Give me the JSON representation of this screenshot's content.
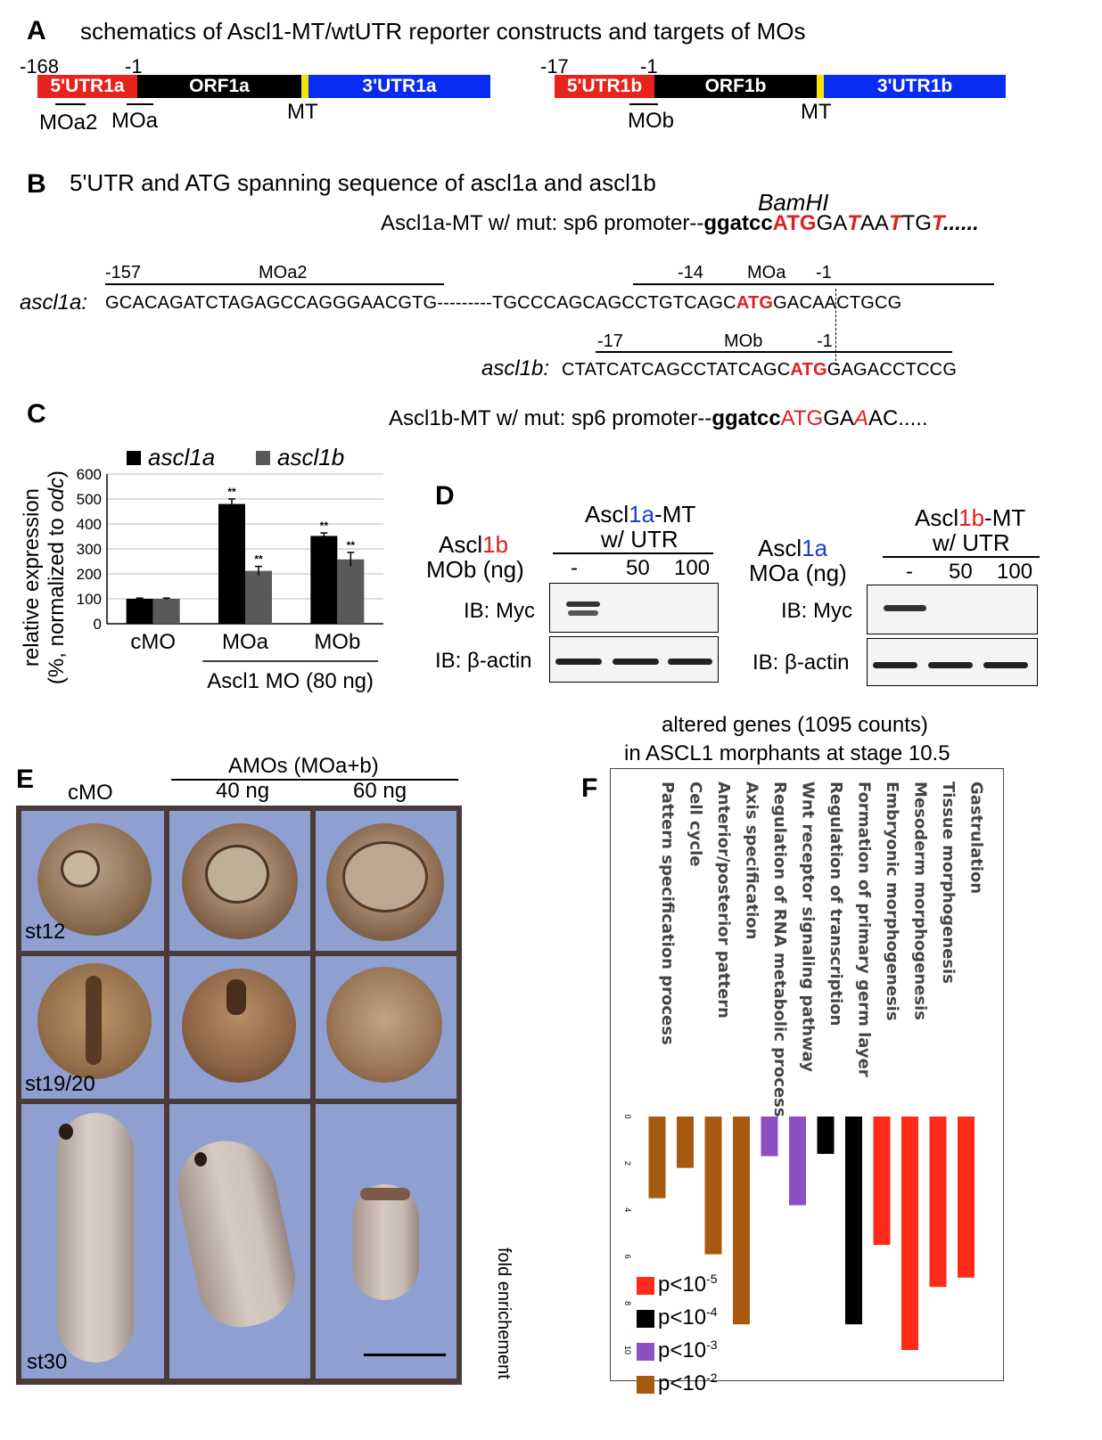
{
  "panelA": {
    "label": "A",
    "title": "schematics of Ascl1-MT/wtUTR reporter constructs and targets of MOs",
    "left": {
      "start": "-168",
      "atg": "-1",
      "utr5": "5'UTR1a",
      "orf": "ORF1a",
      "utr3": "3'UTR1a",
      "mt": "MT",
      "mo1": "MOa2",
      "mo2": "MOa"
    },
    "right": {
      "start": "-17",
      "atg": "-1",
      "utr5": "5'UTR1b",
      "orf": "ORF1b",
      "utr3": "3'UTR1b",
      "mt": "MT",
      "mo1": "MOb"
    },
    "colors": {
      "utr5": "#e8221d",
      "orf": "#000000",
      "mt": "#f2e600",
      "utr3": "#0a2bf2"
    }
  },
  "panelB": {
    "label": "B",
    "title": "5'UTR and ATG spanning sequence of ascl1a and ascl1b",
    "bamhi": "BamHI",
    "mut_a_prefix": "Ascl1a-MT w/ mut: sp6 promoter--",
    "mut_a_site": "ggatcc",
    "mut_a_atg": "ATG",
    "mut_a_seq": [
      "GA",
      "T",
      "AA",
      "T",
      "TG",
      "T",
      "......"
    ],
    "mo_a2": "MOa2",
    "pos_157": "-157",
    "pos_14": "-14",
    "mo_a": "MOa",
    "pos_a1": "-1",
    "ascl1a_name": "ascl1a:",
    "ascl1a_5": "GCACAGATCTAGAGCCAGGGAACGTG---------TGCCCAGCAGCCTGTCAGC",
    "ascl1a_atg": "ATG",
    "ascl1a_3": "GACAACTGCG",
    "pos_17": "-17",
    "mo_b": "MOb",
    "pos_b1": "-1",
    "ascl1b_name": "ascl1b:",
    "ascl1b_5": "CTATCATCAGCCTATCAGC",
    "ascl1b_atg": "ATG",
    "ascl1b_3": "GAGACCTCCG",
    "mut_b_prefix": "Ascl1b-MT w/ mut: sp6 promoter--",
    "mut_b_site": "ggatcc",
    "mut_b_atg": "ATG",
    "mut_b_seq": [
      "GA",
      "A",
      "AC....."
    ]
  },
  "panelC": {
    "label": "C",
    "chart_data": {
      "type": "bar",
      "categories": [
        "cMO",
        "MOa",
        "MOb"
      ],
      "series": [
        {
          "name": "ascl1a",
          "values": [
            100,
            480,
            352
          ],
          "errors": [
            3,
            20,
            12
          ],
          "color": "#000000"
        },
        {
          "name": "ascl1b",
          "values": [
            100,
            212,
            258
          ],
          "errors": [
            3,
            18,
            28
          ],
          "color": "#595959"
        }
      ],
      "significance": [
        [
          "",
          ""
        ],
        [
          "**",
          "**"
        ],
        [
          "**",
          "**"
        ]
      ],
      "ylim": [
        0,
        600
      ],
      "yticks": [
        "0",
        "100",
        "200",
        "300",
        "400",
        "500",
        "600"
      ],
      "ylabel_line1": "relative expression",
      "ylabel_line2": "(%, normalized to ",
      "ylabel_italic": "odc",
      "ylabel_end": ")",
      "group_label": "Ascl1 MO (80 ng)",
      "grid": true
    }
  },
  "panelD": {
    "label": "D",
    "left": {
      "target_pre": "Ascl",
      "target_num": "1b",
      "construct_pre": "Ascl",
      "construct_num": "1a",
      "construct_post": "-MT",
      "construct_line2": "w/ UTR",
      "mo_label": "MOb (ng)",
      "doses": [
        "-",
        "50",
        "100"
      ]
    },
    "right": {
      "target_pre": "Ascl",
      "target_num": "1a",
      "construct_pre": "Ascl",
      "construct_num": "1b",
      "construct_post": "-MT",
      "construct_line2": "w/ UTR",
      "mo_label": "MOa (ng)",
      "doses": [
        "-",
        "50",
        "100"
      ]
    },
    "ib_myc": "IB: Myc",
    "ib_actin": "IB: β-actin"
  },
  "panelE": {
    "label": "E",
    "col_cmo": "cMO",
    "amo_header": "AMOs (MOa+b)",
    "dose1": "40 ng",
    "dose2": "60 ng",
    "stages": [
      "st12",
      "st19/20",
      "st30"
    ]
  },
  "panelF": {
    "label": "F",
    "title_line1": "altered genes (1095 counts)",
    "title_line2": "in ASCL1 morphants at stage 10.5",
    "chart_data": {
      "type": "bar",
      "orientation": "vertical-down",
      "categories": [
        "Pattern specification process",
        "Cell cycle",
        "Anterior/posterior pattern",
        "Axis specification",
        "Regulation of RNA metabolic process",
        "Wnt receptor signaling pathway",
        "Regulation of transcription",
        "Formation of primary germ layer",
        "Embryonic morphogenesis",
        "Mesoderm morphogenesis",
        "Tissue morphogenesis",
        "Gastrulation"
      ],
      "values": [
        3.5,
        2.2,
        5.9,
        8.9,
        1.7,
        3.8,
        1.6,
        8.9,
        5.5,
        10.0,
        7.3,
        6.9
      ],
      "pclass": [
        "p<10-2",
        "p<10-2",
        "p<10-2",
        "p<10-2",
        "p<10-3",
        "p<10-3",
        "p<10-4",
        "p<10-4",
        "p<10-5",
        "p<10-5",
        "p<10-5",
        "p<10-5"
      ],
      "colors": {
        "p<10-5": "#ff2a1a",
        "p<10-4": "#000000",
        "p<10-3": "#8e4fc4",
        "p<10-2": "#a65a10"
      },
      "ylim": [
        0,
        10
      ],
      "yticks": [
        "0",
        "2",
        "4",
        "6",
        "8",
        "10"
      ],
      "ylabel": "fold enrichement",
      "legend": [
        {
          "base": "p<10",
          "exp": "-5",
          "key": "p<10-5"
        },
        {
          "base": "p<10",
          "exp": "-4",
          "key": "p<10-4"
        },
        {
          "base": "p<10",
          "exp": "-3",
          "key": "p<10-3"
        },
        {
          "base": "p<10",
          "exp": "-2",
          "key": "p<10-2"
        }
      ]
    }
  }
}
